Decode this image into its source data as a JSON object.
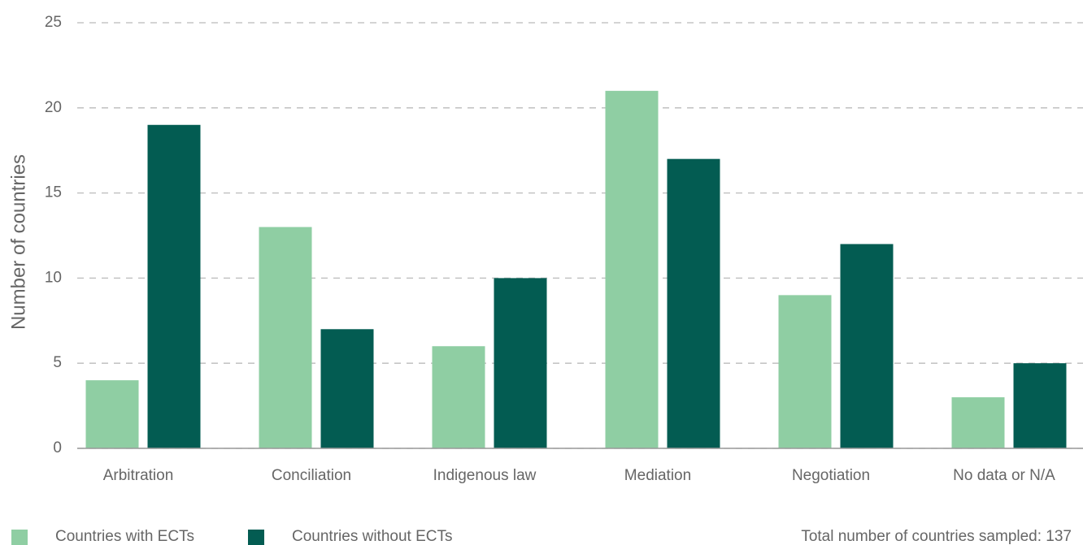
{
  "chart_data": {
    "type": "bar",
    "y_label": "Number of countries",
    "categories": [
      "Arbitration",
      "Conciliation",
      "Indigenous law",
      "Mediation",
      "Negotiation",
      "No data or N/A"
    ],
    "series": [
      {
        "name": "Countries with ECTs",
        "color": "#8fcea3",
        "values": [
          4,
          13,
          6,
          21,
          9,
          3
        ]
      },
      {
        "name": "Countries without ECTs",
        "color": "#035c52",
        "values": [
          19,
          7,
          10,
          17,
          12,
          5
        ]
      }
    ],
    "ylim": [
      0,
      25
    ],
    "yticks": [
      0,
      5,
      10,
      15,
      20,
      25
    ],
    "grid": true,
    "annotation": "Total number of countries sampled: 137"
  }
}
